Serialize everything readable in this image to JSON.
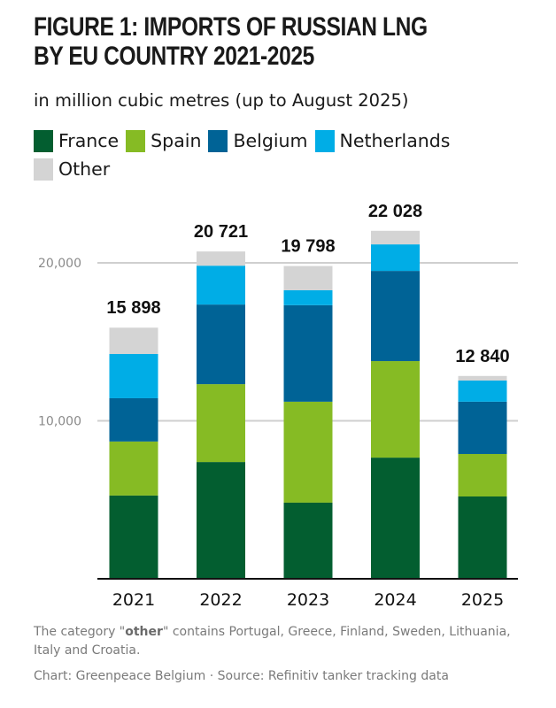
{
  "chart_data": {
    "type": "bar",
    "stacked": true,
    "title": "FIGURE 1: IMPORTS OF RUSSIAN LNG BY EU COUNTRY 2021-2025",
    "title_lines": [
      "FIGURE 1: IMPORTS OF RUSSIAN LNG",
      "BY EU COUNTRY 2021-2025"
    ],
    "subtitle": "in million cubic metres (up to August 2025)",
    "xlabel": "",
    "ylabel": "",
    "categories": [
      "2021",
      "2022",
      "2023",
      "2024",
      "2025"
    ],
    "ylim": [
      0,
      23000
    ],
    "yticks": [
      10000,
      20000
    ],
    "ytick_labels": [
      "10,000",
      "20,000"
    ],
    "grid": true,
    "legend_position": "top-left",
    "series": [
      {
        "name": "France",
        "color": "#035e30",
        "values": [
          5270,
          7390,
          4820,
          7670,
          5210
        ]
      },
      {
        "name": "Spain",
        "color": "#86bb24",
        "values": [
          3420,
          4930,
          6390,
          6110,
          2690
        ]
      },
      {
        "name": "Belgium",
        "color": "#006396",
        "values": [
          2740,
          5040,
          6110,
          5710,
          3310
        ]
      },
      {
        "name": "Netherlands",
        "color": "#00ade6",
        "values": [
          2800,
          2460,
          950,
          1680,
          1340
        ]
      },
      {
        "name": "Other",
        "color": "#d4d4d4",
        "values": [
          1668,
          901,
          1528,
          858,
          290
        ]
      }
    ],
    "totals": [
      15898,
      20721,
      19798,
      22028,
      12840
    ],
    "total_labels": [
      "15 898",
      "20 721",
      "19 798",
      "22 028",
      "12 840"
    ]
  },
  "legend": [
    {
      "label": "France",
      "color": "#035e30"
    },
    {
      "label": "Spain",
      "color": "#86bb24"
    },
    {
      "label": "Belgium",
      "color": "#006396"
    },
    {
      "label": "Netherlands",
      "color": "#00ade6"
    },
    {
      "label": "Other",
      "color": "#d4d4d4"
    }
  ],
  "footnote": {
    "prefix": "The category \"",
    "bold": "other",
    "suffix": "\" contains Portugal, Greece, Finland, Sweden, Lithuania, Italy and Croatia."
  },
  "source": "Chart: Greenpeace Belgium · Source: Refinitiv tanker tracking data"
}
